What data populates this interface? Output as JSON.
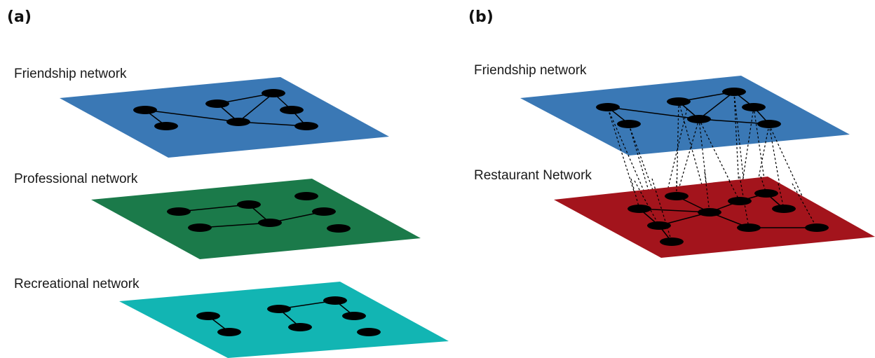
{
  "panels": {
    "a": {
      "label": "(a)",
      "layers": [
        {
          "label": "Friendship network",
          "color": "#3a78b5"
        },
        {
          "label": "Professional network",
          "color": "#1b7a4a"
        },
        {
          "label": "Recreational network",
          "color": "#12b5b3"
        }
      ]
    },
    "b": {
      "label": "(b)",
      "layers": [
        {
          "label": "Friendship network",
          "color": "#3a78b5"
        },
        {
          "label": "Restaurant Network",
          "color": "#a3141c"
        }
      ]
    }
  },
  "colors": {
    "node": "#000000",
    "edge": "#000000",
    "interlayer_edge": "#000000"
  }
}
